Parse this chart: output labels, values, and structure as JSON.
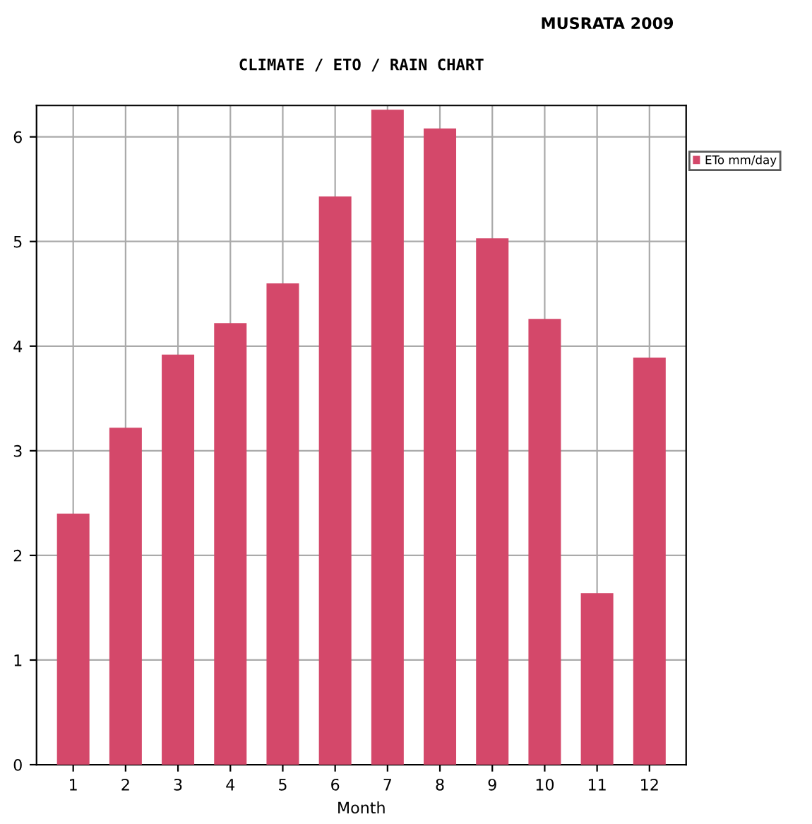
{
  "chart_data": {
    "type": "bar",
    "title": "CLIMATE / ETO / RAIN CHART",
    "subtitle": "MUSRATA 2009",
    "xlabel": "Month",
    "categories": [
      "1",
      "2",
      "3",
      "4",
      "5",
      "6",
      "7",
      "8",
      "9",
      "10",
      "11",
      "12"
    ],
    "series": [
      {
        "name": "ETo mm/day",
        "color": "#d4486a",
        "values": [
          2.4,
          3.22,
          3.92,
          4.22,
          4.6,
          5.43,
          6.26,
          6.08,
          5.03,
          4.26,
          1.64,
          3.89
        ]
      }
    ],
    "ylim": [
      0,
      6.3
    ],
    "yticks": [
      0,
      1,
      2,
      3,
      4,
      5,
      6
    ],
    "grid": true,
    "legend": "top right"
  }
}
